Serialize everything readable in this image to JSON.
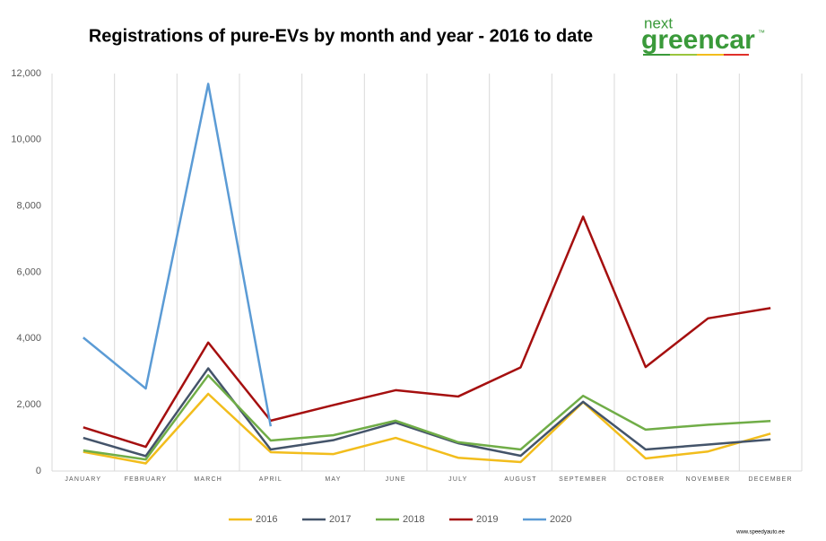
{
  "chart_data": {
    "type": "line",
    "title": "Registrations of pure-EVs by month and year - 2016 to date",
    "logo": {
      "top": "next",
      "main": "greencar",
      "mark": "™"
    },
    "watermark": "www.speedyauto.ee",
    "categories": [
      "JANUARY",
      "FEBRUARY",
      "MARCH",
      "APRIL",
      "MAY",
      "JUNE",
      "JULY",
      "AUGUST",
      "SEPTEMBER",
      "OCTOBER",
      "NOVEMBER",
      "DECEMBER"
    ],
    "series": [
      {
        "name": "2016",
        "color": "#f2bd1c",
        "values": [
          580,
          230,
          2330,
          570,
          510,
          1000,
          400,
          270,
          2080,
          380,
          590,
          1130
        ]
      },
      {
        "name": "2017",
        "color": "#44546a",
        "values": [
          1000,
          450,
          3100,
          650,
          930,
          1460,
          840,
          460,
          2090,
          650,
          800,
          950
        ]
      },
      {
        "name": "2018",
        "color": "#70ad47",
        "values": [
          620,
          350,
          2890,
          920,
          1080,
          1520,
          870,
          650,
          2270,
          1250,
          1400,
          1510
        ]
      },
      {
        "name": "2019",
        "color": "#a50f0f",
        "values": [
          1320,
          730,
          3880,
          1520,
          1990,
          2440,
          2250,
          3130,
          7680,
          3140,
          4610,
          4920
        ]
      },
      {
        "name": "2020",
        "color": "#5b9bd5",
        "values": [
          4030,
          2490,
          11690,
          1350,
          null,
          null,
          null,
          null,
          null,
          null,
          null,
          null
        ]
      }
    ],
    "ylim": [
      0,
      12000
    ],
    "yticks": [
      0,
      {
        "value": 2000,
        "label": "2,000"
      },
      {
        "value": 4000,
        "label": "4,000"
      },
      {
        "value": 6000,
        "label": "6,000"
      },
      {
        "value": 8000,
        "label": "8,000"
      },
      {
        "value": 10000,
        "label": "10,000"
      },
      {
        "value": 12000,
        "label": "12,000"
      }
    ],
    "grid": true,
    "legend": "bottom"
  }
}
